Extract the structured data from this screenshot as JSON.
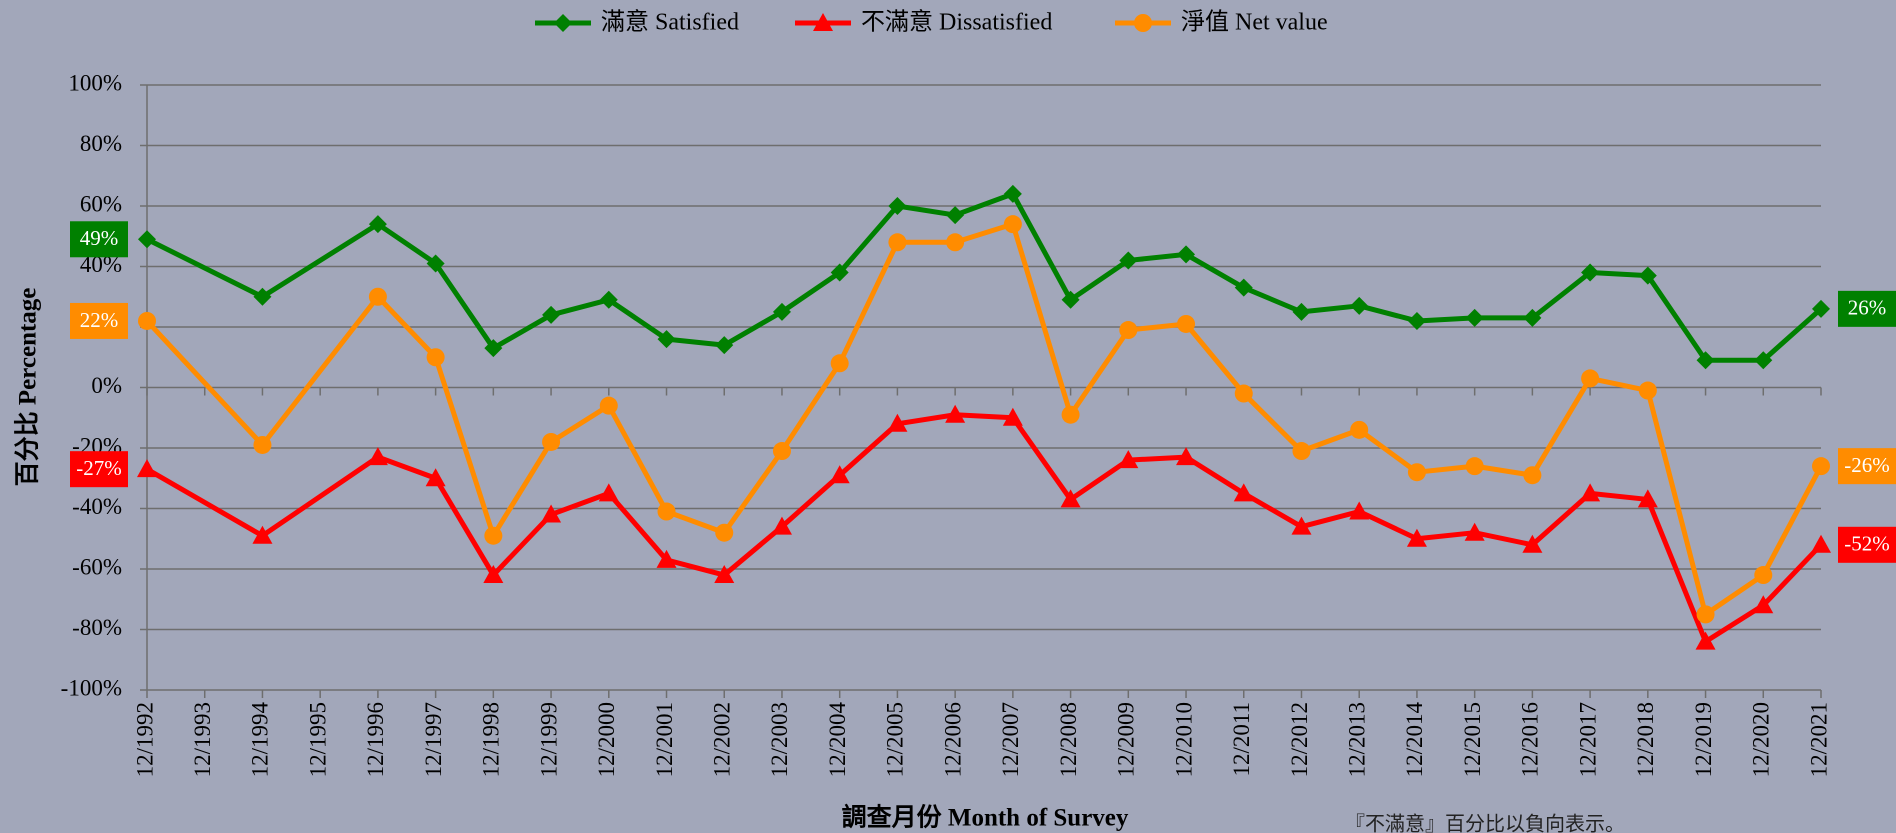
{
  "chart_data": {
    "type": "line",
    "y_label": "百分比 Percentage",
    "x_label": "調查月份 Month of Survey",
    "footnote": "『不滿意』百分比以負向表示。",
    "categories": [
      "12/1992",
      "12/1993",
      "12/1994",
      "12/1995",
      "12/1996",
      "12/1997",
      "12/1998",
      "12/1999",
      "12/2000",
      "12/2001",
      "12/2002",
      "12/2003",
      "12/2004",
      "12/2005",
      "12/2006",
      "12/2007",
      "12/2008",
      "12/2009",
      "12/2010",
      "12/2011",
      "12/2012",
      "12/2013",
      "12/2014",
      "12/2015",
      "12/2016",
      "12/2017",
      "12/2018",
      "12/2019",
      "12/2020",
      "12/2021"
    ],
    "series": [
      {
        "name": "滿意 Satisfied",
        "color": "#008000",
        "marker": "diamond",
        "values": [
          49,
          null,
          30,
          null,
          54,
          41,
          13,
          24,
          29,
          16,
          14,
          25,
          38,
          60,
          57,
          64,
          29,
          42,
          44,
          33,
          25,
          27,
          22,
          23,
          23,
          38,
          37,
          9,
          9,
          26
        ],
        "value_labels": [
          "49%",
          null,
          null,
          null,
          null,
          null,
          null,
          null,
          null,
          null,
          null,
          null,
          null,
          null,
          null,
          null,
          null,
          null,
          null,
          null,
          null,
          null,
          null,
          null,
          null,
          null,
          null,
          null,
          null,
          "26%"
        ]
      },
      {
        "name": "不滿意 Dissatisfied",
        "color": "#ff0000",
        "marker": "triangle",
        "values": [
          -27,
          null,
          -49,
          null,
          -23,
          -30,
          -62,
          -42,
          -35,
          -57,
          -62,
          -46,
          -29,
          -12,
          -9,
          -10,
          -37,
          -24,
          -23,
          -35,
          -46,
          -41,
          -50,
          -48,
          -52,
          -35,
          -37,
          -84,
          -72,
          -52
        ],
        "value_labels": [
          "-27%",
          null,
          null,
          null,
          null,
          null,
          null,
          null,
          null,
          null,
          null,
          null,
          null,
          null,
          null,
          null,
          null,
          null,
          null,
          null,
          null,
          null,
          null,
          null,
          null,
          null,
          null,
          null,
          null,
          "-52%"
        ]
      },
      {
        "name": "淨值 Net value",
        "color": "#ff8c00",
        "marker": "circle",
        "values": [
          22,
          null,
          -19,
          null,
          30,
          10,
          -49,
          -18,
          -6,
          -41,
          -48,
          -21,
          8,
          48,
          48,
          54,
          -9,
          19,
          21,
          -2,
          -21,
          -14,
          -28,
          -26,
          -29,
          3,
          -1,
          -75,
          -62,
          -26
        ],
        "value_labels": [
          "22%",
          null,
          null,
          null,
          null,
          null,
          null,
          null,
          null,
          null,
          null,
          null,
          null,
          null,
          null,
          null,
          null,
          null,
          null,
          null,
          null,
          null,
          null,
          null,
          null,
          null,
          null,
          null,
          null,
          "-26%"
        ]
      }
    ],
    "ylim": [
      -100,
      100
    ],
    "yticks": [
      {
        "value": -100,
        "label": "-100%"
      },
      {
        "value": -80,
        "label": "-80%"
      },
      {
        "value": -60,
        "label": "-60%"
      },
      {
        "value": -40,
        "label": "-40%"
      },
      {
        "value": -20,
        "label": "-20%"
      },
      {
        "value": 0,
        "label": "0%"
      },
      {
        "value": 20,
        "label": "20%"
      },
      {
        "value": 40,
        "label": "40%"
      },
      {
        "value": 60,
        "label": "60%"
      },
      {
        "value": 80,
        "label": "80%"
      },
      {
        "value": 100,
        "label": "100%"
      }
    ],
    "grid": true,
    "legend": "top"
  }
}
